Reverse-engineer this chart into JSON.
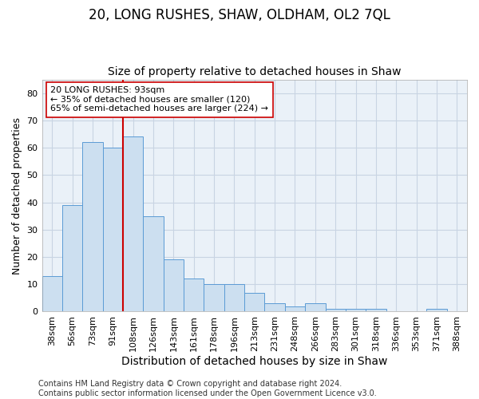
{
  "title": "20, LONG RUSHES, SHAW, OLDHAM, OL2 7QL",
  "subtitle": "Size of property relative to detached houses in Shaw",
  "xlabel": "Distribution of detached houses by size in Shaw",
  "ylabel": "Number of detached properties",
  "categories": [
    "38sqm",
    "56sqm",
    "73sqm",
    "91sqm",
    "108sqm",
    "126sqm",
    "143sqm",
    "161sqm",
    "178sqm",
    "196sqm",
    "213sqm",
    "231sqm",
    "248sqm",
    "266sqm",
    "283sqm",
    "301sqm",
    "318sqm",
    "336sqm",
    "353sqm",
    "371sqm",
    "388sqm"
  ],
  "values": [
    13,
    39,
    62,
    60,
    64,
    35,
    19,
    12,
    10,
    10,
    7,
    3,
    2,
    3,
    1,
    1,
    1,
    0,
    0,
    1,
    0
  ],
  "bar_color": "#ccdff0",
  "bar_edge_color": "#5b9bd5",
  "property_line_x": 3.5,
  "property_line_color": "#cc0000",
  "annotation_text": "20 LONG RUSHES: 93sqm\n← 35% of detached houses are smaller (120)\n65% of semi-detached houses are larger (224) →",
  "annotation_box_color": "white",
  "annotation_box_edge_color": "#cc0000",
  "ylim": [
    0,
    85
  ],
  "yticks": [
    0,
    10,
    20,
    30,
    40,
    50,
    60,
    70,
    80
  ],
  "grid_color": "#c8d4e3",
  "plot_bg_color": "#eaf1f8",
  "footer_text": "Contains HM Land Registry data © Crown copyright and database right 2024.\nContains public sector information licensed under the Open Government Licence v3.0.",
  "title_fontsize": 12,
  "subtitle_fontsize": 10,
  "xlabel_fontsize": 10,
  "ylabel_fontsize": 9,
  "tick_fontsize": 8,
  "annotation_fontsize": 8,
  "footer_fontsize": 7
}
